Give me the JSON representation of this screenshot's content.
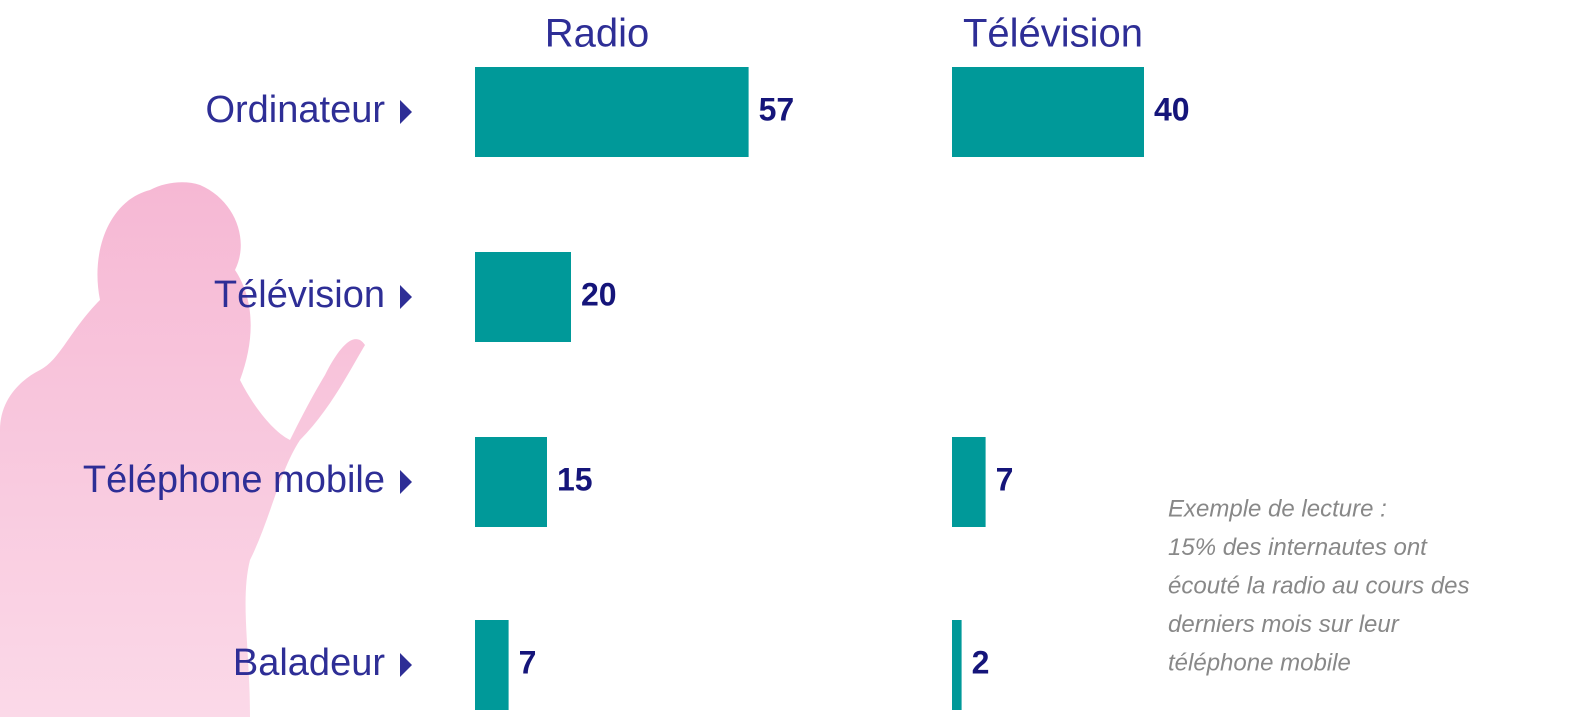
{
  "chart_data": {
    "type": "bar",
    "categories": [
      "Ordinateur",
      "Télévision",
      "Téléphone mobile",
      "Baladeur"
    ],
    "series": [
      {
        "name": "Radio",
        "color": "#009999",
        "values": [
          57,
          20,
          15,
          7
        ]
      },
      {
        "name": "Télévision",
        "color": "#009999",
        "values": [
          40,
          null,
          7,
          2
        ]
      }
    ],
    "annotation": [
      "Exemple de lecture :",
      "15% des internautes ont",
      "écouté la radio au cours des",
      "derniers mois sur leur",
      "téléphone mobile"
    ]
  }
}
